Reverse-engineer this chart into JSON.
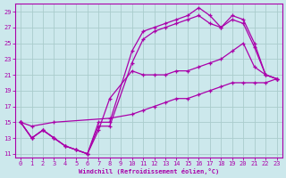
{
  "xlabel": "Windchill (Refroidissement éolien,°C)",
  "bg_color": "#cce8ec",
  "grid_color": "#aacccc",
  "line_color": "#aa00aa",
  "xlim": [
    -0.5,
    23.5
  ],
  "ylim": [
    10.5,
    30
  ],
  "xticks": [
    0,
    1,
    2,
    3,
    4,
    5,
    6,
    7,
    8,
    9,
    10,
    11,
    12,
    13,
    14,
    15,
    16,
    17,
    18,
    19,
    20,
    21,
    22,
    23
  ],
  "yticks": [
    11,
    13,
    15,
    17,
    19,
    21,
    23,
    25,
    27,
    29
  ],
  "series": [
    {
      "x": [
        0,
        1,
        2,
        3,
        4,
        5,
        6,
        7,
        8,
        10,
        11,
        12,
        13,
        14,
        15,
        16,
        17,
        18,
        19,
        20,
        21,
        22,
        23
      ],
      "y": [
        15,
        13,
        14,
        13,
        12,
        11.5,
        11,
        15,
        15,
        24,
        26.5,
        27,
        27.5,
        28,
        28.5,
        29.5,
        28.5,
        27,
        28.5,
        28,
        25,
        21,
        20.5
      ]
    },
    {
      "x": [
        0,
        1,
        2,
        3,
        4,
        5,
        6,
        7,
        8,
        10,
        11,
        12,
        13,
        14,
        15,
        16,
        17,
        18,
        19,
        20,
        21,
        22,
        23
      ],
      "y": [
        15,
        13,
        14,
        13,
        12,
        11.5,
        11,
        14.5,
        14.5,
        22.5,
        25.5,
        26.5,
        27,
        27.5,
        28,
        28.5,
        27.5,
        27,
        28,
        27.5,
        24.5,
        21,
        20.5
      ]
    },
    {
      "x": [
        0,
        1,
        2,
        3,
        4,
        5,
        6,
        7,
        8,
        10,
        11,
        12,
        13,
        14,
        15,
        16,
        17,
        18,
        19,
        20,
        21,
        22,
        23
      ],
      "y": [
        15,
        13,
        14,
        13,
        12,
        11.5,
        11,
        14,
        18,
        21.5,
        21,
        21,
        21,
        21.5,
        21.5,
        22,
        22.5,
        23,
        24,
        25,
        22,
        21,
        20.5
      ]
    },
    {
      "x": [
        0,
        1,
        3,
        8,
        10,
        11,
        12,
        13,
        14,
        15,
        16,
        17,
        18,
        19,
        20,
        21,
        22,
        23
      ],
      "y": [
        15,
        14.5,
        15,
        15.5,
        16,
        16.5,
        17,
        17.5,
        18,
        18,
        18.5,
        19,
        19.5,
        20,
        20,
        20,
        20,
        20.5
      ]
    }
  ]
}
